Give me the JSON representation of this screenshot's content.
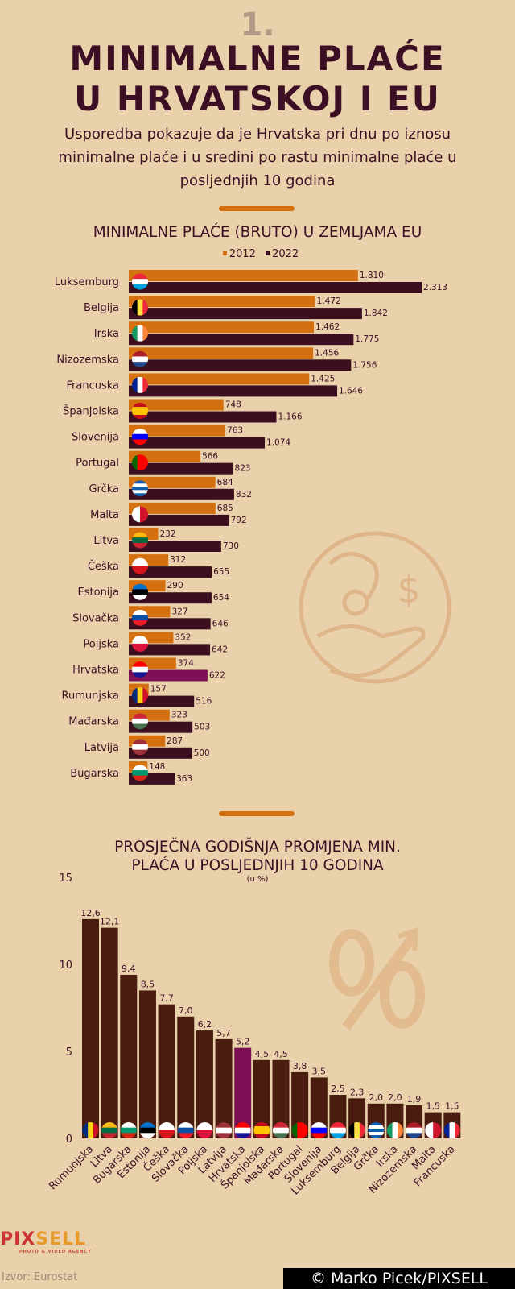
{
  "header": {
    "number": "1.",
    "title_line1": "MINIMALNE PLAĆE",
    "title_line2": "U HRVATSKOJ I EU",
    "subtitle": "Usporedba pokazuje da je Hrvatska pri dnu po iznosu minimalne plaće i u sredini po rastu minimalne plaće u posljednjih 10 godina"
  },
  "colors": {
    "background": "#e9d1ab",
    "accent": "#d4700f",
    "dark": "#3b0f1f",
    "highlight": "#7d1054",
    "bar2": "#4a1c10"
  },
  "flags": {
    "Luksemburg": {
      "o": "h",
      "c": [
        "#ed2939",
        "#ffffff",
        "#00a1de"
      ]
    },
    "Belgija": {
      "o": "v",
      "c": [
        "#000000",
        "#fae042",
        "#ed2939"
      ]
    },
    "Irska": {
      "o": "v",
      "c": [
        "#169b62",
        "#ffffff",
        "#ff883e"
      ]
    },
    "Nizozemska": {
      "o": "h",
      "c": [
        "#ae1c28",
        "#ffffff",
        "#21468b"
      ]
    },
    "Francuska": {
      "o": "v",
      "c": [
        "#002395",
        "#ffffff",
        "#ed2939"
      ]
    },
    "Španjolska": {
      "o": "h",
      "c": [
        "#c60b1e",
        "#ffc400",
        "#ffc400",
        "#c60b1e"
      ]
    },
    "Slovenija": {
      "o": "h",
      "c": [
        "#ffffff",
        "#0000ff",
        "#ff0000"
      ]
    },
    "Portugal": {
      "o": "v",
      "c": [
        "#006600",
        "#ff0000",
        "#ff0000"
      ]
    },
    "Grčka": {
      "o": "h",
      "c": [
        "#0d5eaf",
        "#ffffff",
        "#0d5eaf",
        "#ffffff",
        "#0d5eaf"
      ]
    },
    "Malta": {
      "o": "v",
      "c": [
        "#ffffff",
        "#cf142b"
      ]
    },
    "Litva": {
      "o": "h",
      "c": [
        "#fdb913",
        "#006a44",
        "#c1272d"
      ]
    },
    "Češka": {
      "o": "h",
      "c": [
        "#ffffff",
        "#d7141a"
      ]
    },
    "Estonija": {
      "o": "h",
      "c": [
        "#0072ce",
        "#000000",
        "#ffffff"
      ]
    },
    "Slovačka": {
      "o": "h",
      "c": [
        "#ffffff",
        "#0b4ea2",
        "#ee1c25"
      ]
    },
    "Poljska": {
      "o": "h",
      "c": [
        "#ffffff",
        "#dc143c"
      ]
    },
    "Hrvatska": {
      "o": "h",
      "c": [
        "#ff0000",
        "#ffffff",
        "#171796"
      ]
    },
    "Rumunjska": {
      "o": "v",
      "c": [
        "#002b7f",
        "#fcd116",
        "#ce1126"
      ]
    },
    "Mađarska": {
      "o": "h",
      "c": [
        "#ce2939",
        "#ffffff",
        "#477050"
      ]
    },
    "Latvija": {
      "o": "h",
      "c": [
        "#9e3039",
        "#ffffff",
        "#9e3039"
      ]
    },
    "Bugarska": {
      "o": "h",
      "c": [
        "#ffffff",
        "#00966e",
        "#d62612"
      ]
    }
  },
  "chart_data": [
    {
      "type": "bar",
      "orientation": "horizontal",
      "title": "MINIMALNE PLAĆE (BRUTO) U ZEMLJAMA EU",
      "legend_position": "top",
      "highlight": "Hrvatska",
      "categories": [
        "Luksemburg",
        "Belgija",
        "Irska",
        "Nizozemska",
        "Francuska",
        "Španjolska",
        "Slovenija",
        "Portugal",
        "Grčka",
        "Malta",
        "Litva",
        "Češka",
        "Estonija",
        "Slovačka",
        "Poljska",
        "Hrvatska",
        "Rumunjska",
        "Mađarska",
        "Latvija",
        "Bugarska"
      ],
      "series": [
        {
          "name": "2012",
          "color": "#d4700f",
          "values": [
            1810,
            1472,
            1462,
            1456,
            1425,
            748,
            763,
            566,
            684,
            685,
            232,
            312,
            290,
            327,
            352,
            374,
            157,
            323,
            287,
            148
          ],
          "labels": [
            "1.810",
            "1.472",
            "1.462",
            "1.456",
            "1.425",
            "748",
            "763",
            "566",
            "684",
            "685",
            "232",
            "312",
            "290",
            "327",
            "352",
            "374",
            "157",
            "323",
            "287",
            "148"
          ]
        },
        {
          "name": "2022",
          "color": "#3b0f1f",
          "values": [
            2313,
            1842,
            1775,
            1756,
            1646,
            1166,
            1074,
            823,
            832,
            792,
            730,
            655,
            654,
            646,
            642,
            622,
            516,
            503,
            500,
            363
          ],
          "labels": [
            "2.313",
            "1.842",
            "1.775",
            "1.756",
            "1.646",
            "1.166",
            "1.074",
            "823",
            "832",
            "792",
            "730",
            "655",
            "654",
            "646",
            "642",
            "622",
            "516",
            "503",
            "500",
            "363"
          ]
        }
      ]
    },
    {
      "type": "bar",
      "title_line1": "PROSJEČNA GODIŠNJA PROMJENA MIN.",
      "title_line2": "PLAĆA U POSLJEDNJIH 10 GODINA",
      "unit": "(u %)",
      "ylim": [
        0,
        15
      ],
      "yticks": [
        "0",
        "5",
        "10",
        "15"
      ],
      "grid": false,
      "highlight": "Hrvatska",
      "categories": [
        "Rumunjska",
        "Litva",
        "Bugarska",
        "Estonija",
        "Češka",
        "Slovačka",
        "Poljska",
        "Latvija",
        "Hrvatska",
        "Španjolska",
        "Mađarska",
        "Portugal",
        "Slovenija",
        "Luksemburg",
        "Belgija",
        "Grčka",
        "Irska",
        "Nizozemska",
        "Malta",
        "Francuska"
      ],
      "values": [
        12.6,
        12.1,
        9.4,
        8.5,
        7.7,
        7.0,
        6.2,
        5.7,
        5.2,
        4.5,
        4.5,
        3.8,
        3.5,
        2.5,
        2.3,
        2.0,
        2.0,
        1.9,
        1.5,
        1.5
      ],
      "labels": [
        "12,6",
        "12,1",
        "9,4",
        "8,5",
        "7,7",
        "7,0",
        "6,2",
        "5,7",
        "5,2",
        "4,5",
        "4,5",
        "3,8",
        "3,5",
        "2,5",
        "2,3",
        "2,0",
        "2,0",
        "1,9",
        "1,5",
        "1,5"
      ]
    }
  ],
  "footer": {
    "logo_part1": "PIX",
    "logo_part2": "SELL",
    "logo_tagline": "PHOTO & VIDEO AGENCY",
    "source": "Izvor: Eurostat",
    "credit": "© Marko Picek/PIXSELL"
  }
}
